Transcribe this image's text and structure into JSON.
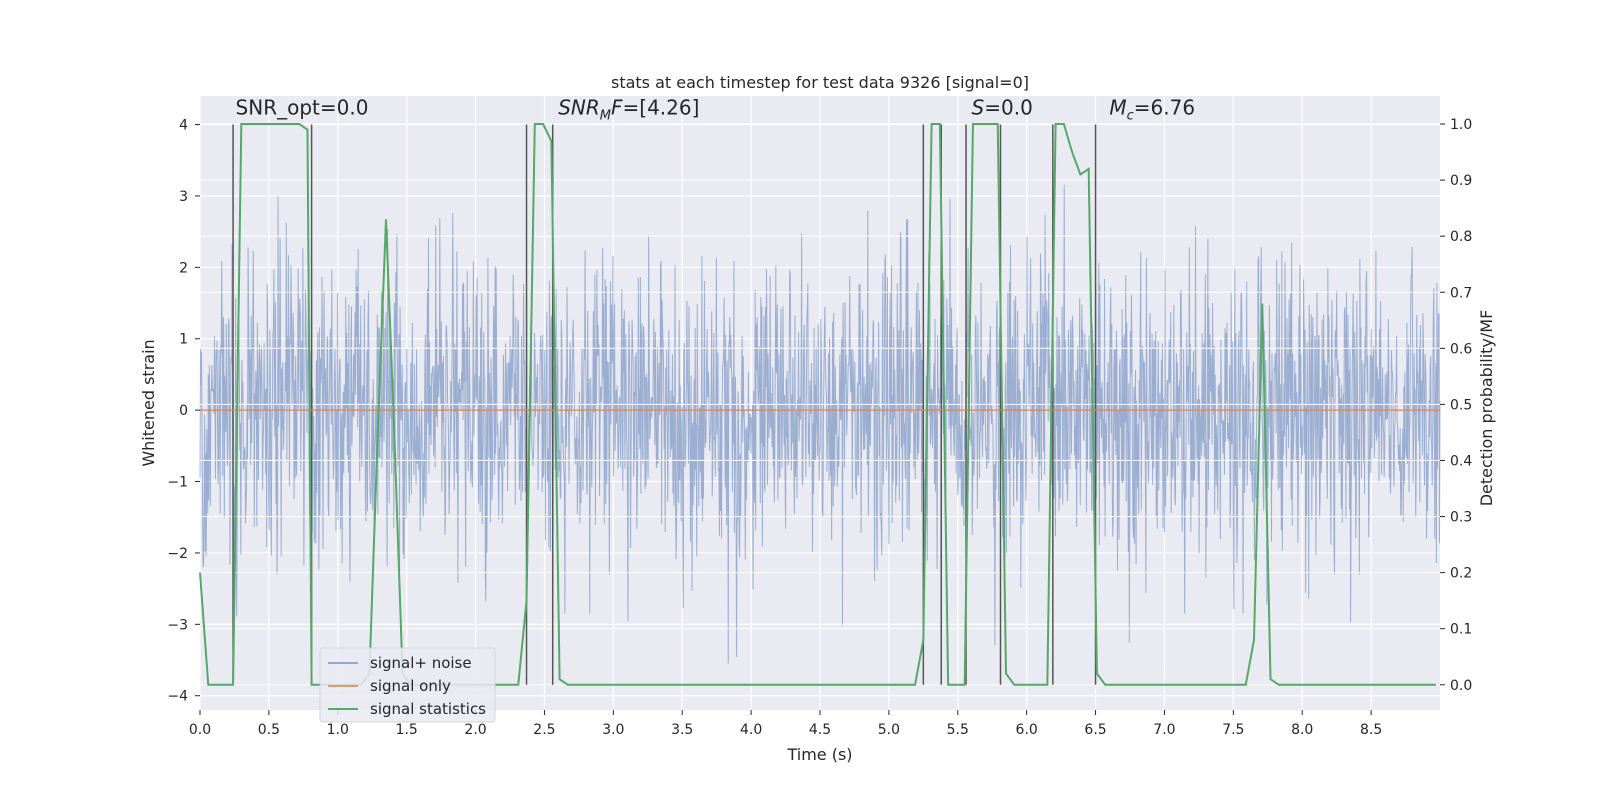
{
  "chart_data": {
    "type": "line",
    "title": "stats at each timestep for test data 9326 [signal=0]",
    "xlabel": "Time (s)",
    "ylabel": "Whitened strain",
    "y2label": "Detection probability/MF",
    "xlim": [
      0.0,
      9.0
    ],
    "ylim": [
      -4.2,
      4.4
    ],
    "y2lim": [
      -0.045,
      1.05
    ],
    "grid": true,
    "x_ticks": [
      0.0,
      0.5,
      1.0,
      1.5,
      2.0,
      2.5,
      3.0,
      3.5,
      4.0,
      4.5,
      5.0,
      5.5,
      6.0,
      6.5,
      7.0,
      7.5,
      8.0,
      8.5
    ],
    "x_tick_labels": [
      "0.0",
      "0.5",
      "1.0",
      "1.5",
      "2.0",
      "2.5",
      "3.0",
      "3.5",
      "4.0",
      "4.5",
      "5.0",
      "5.5",
      "6.0",
      "6.5",
      "7.0",
      "7.5",
      "8.0",
      "8.5"
    ],
    "y_ticks": [
      -4,
      -3,
      -2,
      -1,
      0,
      1,
      2,
      3,
      4
    ],
    "y_tick_labels": [
      "−4",
      "−3",
      "−2",
      "−1",
      "0",
      "1",
      "2",
      "3",
      "4"
    ],
    "y2_ticks": [
      0.0,
      0.1,
      0.2,
      0.3,
      0.4,
      0.5,
      0.6,
      0.7,
      0.8,
      0.9,
      1.0
    ],
    "y2_tick_labels": [
      "0.0",
      "0.1",
      "0.2",
      "0.3",
      "0.4",
      "0.5",
      "0.6",
      "0.7",
      "0.8",
      "0.9",
      "1.0"
    ],
    "annotations": [
      {
        "text": "SNR_opt=0.0",
        "x": 0.2,
        "y": 4.1
      },
      {
        "text": "SNR",
        "sub": "M",
        "after": "F=[4.26]",
        "italic": "SNR M F",
        "x": 2.6,
        "y": 4.1
      },
      {
        "text": "S=0.0",
        "x": 5.6,
        "y": 4.1
      },
      {
        "text": "M",
        "sub": "c",
        "after": "=6.76",
        "x": 6.6,
        "y": 4.1
      }
    ],
    "vertical_lines_x": [
      0.24,
      0.81,
      2.37,
      2.56,
      5.25,
      5.38,
      5.56,
      5.81,
      6.19,
      6.5
    ],
    "series": [
      {
        "name": "signal+ noise",
        "color": "#4c72b0",
        "axis": "left",
        "style": "dense noise, roughly Gaussian, sd ~1, peaks to about +/-4"
      },
      {
        "name": "signal only",
        "color": "#dd8452",
        "axis": "left",
        "x": [
          0.0,
          9.0
        ],
        "y": [
          0.0,
          0.0
        ]
      },
      {
        "name": "signal statistics",
        "color": "#55a868",
        "axis": "right",
        "x": [
          0.0,
          0.06,
          0.12,
          0.18,
          0.24,
          0.3,
          0.36,
          0.42,
          0.48,
          0.54,
          0.6,
          0.66,
          0.72,
          0.78,
          0.81,
          0.87,
          0.93,
          0.99,
          1.05,
          1.11,
          1.17,
          1.23,
          1.29,
          1.35,
          1.41,
          1.47,
          1.53,
          1.59,
          1.65,
          1.71,
          1.77,
          1.83,
          1.89,
          1.95,
          2.01,
          2.07,
          2.13,
          2.19,
          2.25,
          2.31,
          2.37,
          2.43,
          2.49,
          2.55,
          2.61,
          2.67,
          2.73,
          2.79,
          5.19,
          5.25,
          5.31,
          5.37,
          5.43,
          5.49,
          5.55,
          5.61,
          5.67,
          5.73,
          5.79,
          5.85,
          5.91,
          5.97,
          6.03,
          6.09,
          6.15,
          6.21,
          6.27,
          6.33,
          6.39,
          6.45,
          6.51,
          6.57,
          6.63,
          6.69,
          7.59,
          7.65,
          7.71,
          7.77,
          7.83,
          8.97
        ],
        "y": [
          0.2,
          0.0,
          0.0,
          0.0,
          0.0,
          1.0,
          1.0,
          1.0,
          1.0,
          1.0,
          1.0,
          1.0,
          1.0,
          0.99,
          0.0,
          0.0,
          0.0,
          0.0,
          0.0,
          0.0,
          0.0,
          0.02,
          0.45,
          0.83,
          0.45,
          0.02,
          0.0,
          0.0,
          0.0,
          0.0,
          0.0,
          0.0,
          0.0,
          0.0,
          0.0,
          0.0,
          0.0,
          0.0,
          0.0,
          0.0,
          0.15,
          1.0,
          1.0,
          0.97,
          0.01,
          0.0,
          0.0,
          0.0,
          0.0,
          0.08,
          1.0,
          1.0,
          0.0,
          0.0,
          0.0,
          1.0,
          1.0,
          1.0,
          1.0,
          0.02,
          0.0,
          0.0,
          0.0,
          0.0,
          0.0,
          1.0,
          1.0,
          0.95,
          0.91,
          0.92,
          0.02,
          0.0,
          0.0,
          0.0,
          0.0,
          0.08,
          0.68,
          0.01,
          0.0,
          0.0
        ]
      }
    ],
    "legend": {
      "placement": "lower-left",
      "entries": [
        "signal+ noise",
        "signal only",
        "signal statistics"
      ]
    }
  }
}
